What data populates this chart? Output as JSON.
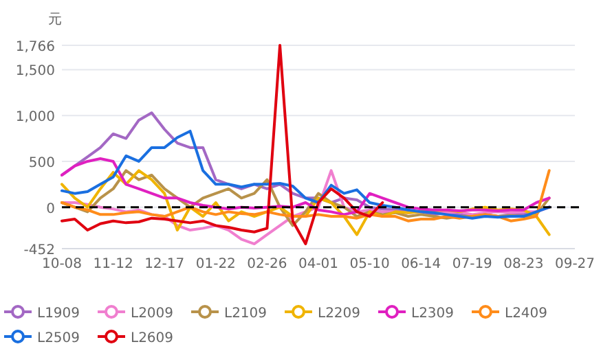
{
  "chart_data": {
    "type": "line",
    "ylabel": "元",
    "categories": [
      "10-08",
      null,
      null,
      null,
      "11-12",
      null,
      null,
      null,
      "12-17",
      null,
      null,
      null,
      "01-22",
      null,
      null,
      null,
      "02-26",
      null,
      null,
      null,
      "04-01",
      null,
      null,
      null,
      "05-10",
      null,
      null,
      null,
      "06-14",
      null,
      null,
      null,
      "07-19",
      null,
      null,
      null,
      "08-23",
      null,
      null,
      null,
      "09-27"
    ],
    "series": [
      {
        "name": "L1909",
        "color": "#a368c4",
        "values": [
          350,
          450,
          550,
          650,
          800,
          750,
          950,
          1030,
          850,
          700,
          650,
          650,
          300,
          250,
          200,
          250,
          200,
          250,
          150,
          100,
          100,
          50,
          100,
          80,
          0,
          -20,
          -30,
          -50,
          -50,
          -80,
          -60,
          -80,
          -100,
          -80,
          -100,
          -80,
          -80,
          -50,
          0,
          null,
          null
        ]
      },
      {
        "name": "L2009",
        "color": "#f07fcf",
        "values": [
          50,
          50,
          30,
          0,
          -20,
          -50,
          -30,
          -80,
          -100,
          -200,
          -250,
          -230,
          -200,
          -250,
          -350,
          -400,
          -300,
          -200,
          -100,
          -50,
          0,
          400,
          0,
          -50,
          -30,
          -50,
          -50,
          -60,
          -50,
          -40,
          -60,
          -50,
          -80,
          -60,
          -50,
          -60,
          -50,
          -50,
          0,
          null,
          null
        ]
      },
      {
        "name": "L2109",
        "color": "#b8924a",
        "values": [
          50,
          0,
          -50,
          100,
          200,
          400,
          300,
          350,
          200,
          100,
          0,
          100,
          150,
          200,
          100,
          150,
          300,
          0,
          -200,
          -50,
          150,
          50,
          0,
          -100,
          -50,
          -80,
          -60,
          -100,
          -80,
          -100,
          -120,
          -100,
          -100,
          -80,
          -100,
          -90,
          -100,
          -80,
          100,
          null,
          null
        ]
      },
      {
        "name": "L2209",
        "color": "#f0b400",
        "values": [
          250,
          100,
          0,
          200,
          380,
          250,
          400,
          300,
          150,
          -250,
          0,
          -100,
          50,
          -150,
          -50,
          -100,
          -50,
          0,
          -100,
          -100,
          100,
          50,
          -100,
          -300,
          -50,
          -100,
          -50,
          -60,
          -50,
          -40,
          -30,
          -50,
          -20,
          0,
          -30,
          -20,
          -30,
          -100,
          -300,
          null,
          null
        ]
      },
      {
        "name": "L2309",
        "color": "#e020c0",
        "values": [
          350,
          450,
          500,
          530,
          500,
          250,
          200,
          150,
          100,
          100,
          50,
          20,
          0,
          -20,
          0,
          -10,
          0,
          10,
          0,
          50,
          -30,
          -50,
          -80,
          -50,
          150,
          100,
          50,
          0,
          -20,
          -30,
          -30,
          -40,
          -30,
          -30,
          -40,
          -30,
          -30,
          50,
          100,
          null,
          null
        ]
      },
      {
        "name": "L2409",
        "color": "#ff8c1a",
        "values": [
          50,
          0,
          -30,
          -80,
          -80,
          -60,
          -50,
          -80,
          -100,
          -50,
          0,
          -50,
          -80,
          -50,
          -70,
          -80,
          -50,
          -80,
          -100,
          -100,
          -80,
          -100,
          -100,
          -120,
          -80,
          -100,
          -100,
          -150,
          -130,
          -130,
          -100,
          -120,
          -100,
          -80,
          -100,
          -150,
          -130,
          -100,
          400,
          null,
          null
        ]
      },
      {
        "name": "L2509",
        "color": "#1a6fe0",
        "values": [
          180,
          150,
          170,
          250,
          330,
          560,
          500,
          650,
          650,
          760,
          830,
          400,
          250,
          250,
          220,
          250,
          250,
          260,
          230,
          100,
          50,
          240,
          150,
          190,
          50,
          20,
          0,
          -30,
          -50,
          -60,
          -80,
          -100,
          -120,
          -100,
          -110,
          -100,
          -100,
          -50,
          0,
          null,
          null
        ]
      },
      {
        "name": "L2609",
        "color": "#e00010",
        "values": [
          -150,
          -130,
          -250,
          -180,
          -150,
          -170,
          -160,
          -120,
          -130,
          -150,
          -170,
          -150,
          -200,
          -220,
          -250,
          -270,
          -230,
          1766,
          -150,
          -400,
          50,
          200,
          100,
          -50,
          -100,
          50,
          null,
          null,
          null,
          null,
          null,
          null,
          null,
          null,
          null,
          null,
          null,
          null,
          null,
          null,
          null
        ]
      }
    ],
    "ylim": [
      -452,
      1766
    ],
    "yticks": [
      -452,
      0,
      500,
      {
        "value": 1000,
        "label": "1,000"
      },
      {
        "value": 1500,
        "label": "1,500"
      },
      {
        "value": 1766,
        "label": "1,766"
      }
    ],
    "ref_lines": [
      {
        "axis": "y",
        "value": 0,
        "color": "#000000",
        "line_style": "dashed"
      }
    ],
    "grid": "y",
    "legend": "bottom"
  }
}
